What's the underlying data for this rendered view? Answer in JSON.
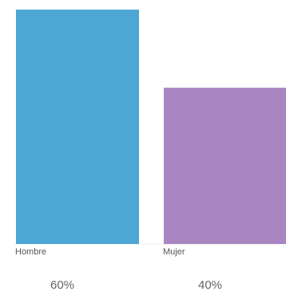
{
  "chart_data": {
    "type": "bar",
    "categories": [
      "Hombre",
      "Mujer"
    ],
    "values": [
      60,
      40
    ],
    "value_labels": [
      "60%",
      "40%"
    ],
    "colors": [
      "#4ea6d4",
      "#a986c2"
    ],
    "ylim": [
      0,
      60
    ],
    "grid": false,
    "legend": "none"
  }
}
